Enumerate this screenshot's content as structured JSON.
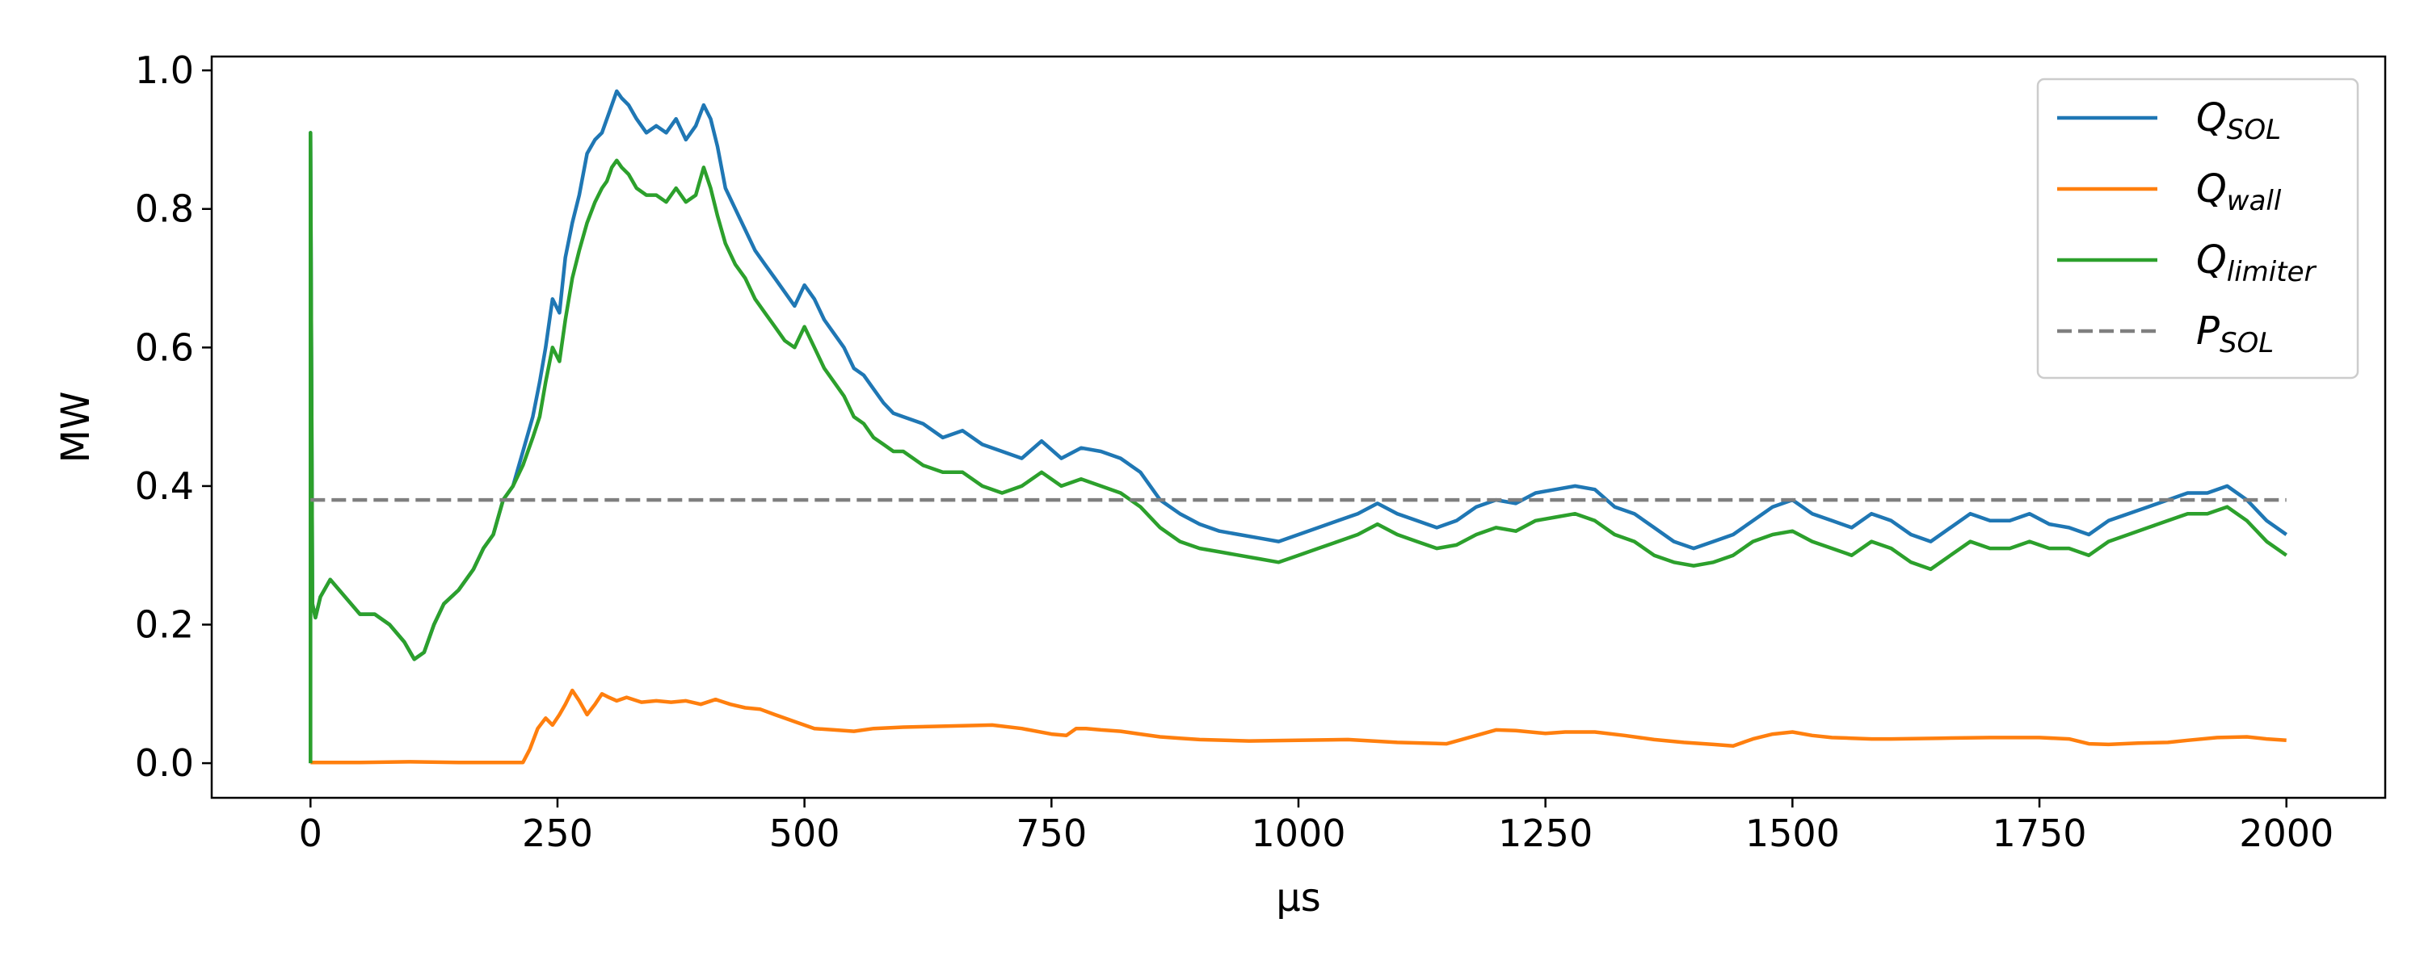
{
  "chart_data": {
    "type": "line",
    "title": "",
    "xlabel": "μs",
    "ylabel": "MW",
    "xlim": [
      -100,
      2100
    ],
    "ylim": [
      -0.05,
      1.02
    ],
    "xticks": [
      0,
      250,
      500,
      750,
      1000,
      1250,
      1500,
      1750,
      2000
    ],
    "yticks": [
      0.0,
      0.2,
      0.4,
      0.6,
      0.8,
      1.0
    ],
    "xtick_labels": [
      "0",
      "250",
      "500",
      "750",
      "1000",
      "1250",
      "1500",
      "1750",
      "2000"
    ],
    "ytick_labels": [
      "0.0",
      "0.2",
      "0.4",
      "0.6",
      "0.8",
      "1.0"
    ],
    "grid": false,
    "legend_position": "top-right",
    "series": [
      {
        "name_main": "Q",
        "name_sub": "SOL",
        "color": "#1f77b4",
        "style": "solid",
        "x": [
          0,
          0,
          2,
          5,
          10,
          20,
          35,
          50,
          65,
          80,
          95,
          105,
          115,
          125,
          135,
          150,
          165,
          175,
          185,
          195,
          205,
          215,
          225,
          232,
          238,
          245,
          252,
          258,
          265,
          272,
          280,
          288,
          295,
          300,
          305,
          310,
          315,
          322,
          330,
          340,
          350,
          360,
          370,
          380,
          390,
          398,
          405,
          412,
          420,
          430,
          440,
          450,
          460,
          470,
          480,
          490,
          500,
          510,
          520,
          530,
          540,
          550,
          560,
          570,
          580,
          590,
          600,
          620,
          640,
          660,
          680,
          700,
          720,
          740,
          760,
          780,
          800,
          820,
          840,
          860,
          880,
          900,
          920,
          940,
          960,
          980,
          1000,
          1020,
          1040,
          1060,
          1080,
          1100,
          1120,
          1140,
          1160,
          1180,
          1200,
          1220,
          1240,
          1260,
          1280,
          1300,
          1320,
          1340,
          1360,
          1380,
          1400,
          1420,
          1440,
          1460,
          1480,
          1500,
          1520,
          1540,
          1560,
          1580,
          1600,
          1620,
          1640,
          1660,
          1680,
          1700,
          1720,
          1740,
          1760,
          1780,
          1800,
          1820,
          1840,
          1860,
          1880,
          1900,
          1920,
          1940,
          1960,
          1980,
          2000
        ],
        "y": [
          0.0,
          0.91,
          0.23,
          0.21,
          0.24,
          0.265,
          0.24,
          0.215,
          0.215,
          0.2,
          0.175,
          0.15,
          0.16,
          0.2,
          0.23,
          0.25,
          0.28,
          0.31,
          0.33,
          0.38,
          0.4,
          0.45,
          0.5,
          0.55,
          0.6,
          0.67,
          0.65,
          0.73,
          0.78,
          0.82,
          0.88,
          0.9,
          0.91,
          0.93,
          0.95,
          0.97,
          0.96,
          0.95,
          0.93,
          0.91,
          0.92,
          0.91,
          0.93,
          0.9,
          0.92,
          0.95,
          0.93,
          0.89,
          0.83,
          0.8,
          0.77,
          0.74,
          0.72,
          0.7,
          0.68,
          0.66,
          0.69,
          0.67,
          0.64,
          0.62,
          0.6,
          0.57,
          0.56,
          0.54,
          0.52,
          0.505,
          0.5,
          0.49,
          0.47,
          0.48,
          0.46,
          0.45,
          0.44,
          0.465,
          0.44,
          0.455,
          0.45,
          0.44,
          0.42,
          0.38,
          0.36,
          0.345,
          0.335,
          0.33,
          0.325,
          0.32,
          0.33,
          0.34,
          0.35,
          0.36,
          0.375,
          0.36,
          0.35,
          0.34,
          0.35,
          0.37,
          0.38,
          0.375,
          0.39,
          0.395,
          0.4,
          0.395,
          0.37,
          0.36,
          0.34,
          0.32,
          0.31,
          0.32,
          0.33,
          0.35,
          0.37,
          0.38,
          0.36,
          0.35,
          0.34,
          0.36,
          0.35,
          0.33,
          0.32,
          0.34,
          0.36,
          0.35,
          0.35,
          0.36,
          0.345,
          0.34,
          0.33,
          0.35,
          0.36,
          0.37,
          0.38,
          0.39,
          0.39,
          0.4,
          0.38,
          0.35,
          0.33
        ]
      },
      {
        "name_main": "Q",
        "name_sub": "wall",
        "color": "#ff7f0e",
        "style": "solid",
        "x": [
          0,
          50,
          100,
          150,
          200,
          215,
          222,
          230,
          238,
          245,
          252,
          258,
          265,
          272,
          280,
          288,
          295,
          302,
          310,
          320,
          335,
          350,
          365,
          380,
          395,
          410,
          425,
          440,
          455,
          470,
          490,
          510,
          530,
          550,
          570,
          600,
          630,
          660,
          690,
          720,
          750,
          765,
          775,
          785,
          800,
          820,
          840,
          860,
          880,
          900,
          950,
          1000,
          1050,
          1100,
          1150,
          1180,
          1200,
          1220,
          1250,
          1270,
          1300,
          1330,
          1360,
          1390,
          1420,
          1440,
          1460,
          1480,
          1500,
          1520,
          1540,
          1560,
          1580,
          1600,
          1650,
          1700,
          1750,
          1780,
          1800,
          1820,
          1850,
          1880,
          1900,
          1930,
          1960,
          1980,
          2000
        ],
        "y": [
          0.001,
          0.001,
          0.002,
          0.001,
          0.001,
          0.001,
          0.02,
          0.05,
          0.065,
          0.055,
          0.07,
          0.085,
          0.105,
          0.09,
          0.07,
          0.085,
          0.1,
          0.095,
          0.09,
          0.095,
          0.088,
          0.09,
          0.088,
          0.09,
          0.085,
          0.092,
          0.085,
          0.08,
          0.078,
          0.07,
          0.06,
          0.05,
          0.048,
          0.046,
          0.05,
          0.052,
          0.053,
          0.054,
          0.055,
          0.05,
          0.042,
          0.04,
          0.05,
          0.05,
          0.048,
          0.046,
          0.042,
          0.038,
          0.036,
          0.034,
          0.032,
          0.033,
          0.034,
          0.03,
          0.028,
          0.04,
          0.048,
          0.047,
          0.043,
          0.045,
          0.045,
          0.04,
          0.034,
          0.03,
          0.027,
          0.025,
          0.035,
          0.042,
          0.045,
          0.04,
          0.037,
          0.036,
          0.035,
          0.035,
          0.036,
          0.037,
          0.037,
          0.035,
          0.028,
          0.027,
          0.029,
          0.03,
          0.033,
          0.037,
          0.038,
          0.035,
          0.033
        ]
      },
      {
        "name_main": "Q",
        "name_sub": "limiter",
        "color": "#2ca02c",
        "style": "solid",
        "x": [
          0,
          0,
          2,
          5,
          10,
          20,
          35,
          50,
          65,
          80,
          95,
          105,
          115,
          125,
          135,
          150,
          165,
          175,
          185,
          195,
          205,
          215,
          225,
          232,
          238,
          245,
          252,
          258,
          265,
          272,
          280,
          288,
          295,
          300,
          305,
          310,
          315,
          322,
          330,
          340,
          350,
          360,
          370,
          380,
          390,
          398,
          405,
          412,
          420,
          430,
          440,
          450,
          460,
          470,
          480,
          490,
          500,
          510,
          520,
          530,
          540,
          550,
          560,
          570,
          580,
          590,
          600,
          620,
          640,
          660,
          680,
          700,
          720,
          740,
          760,
          780,
          800,
          820,
          840,
          860,
          880,
          900,
          920,
          940,
          960,
          980,
          1000,
          1020,
          1040,
          1060,
          1080,
          1100,
          1120,
          1140,
          1160,
          1180,
          1200,
          1220,
          1240,
          1260,
          1280,
          1300,
          1320,
          1340,
          1360,
          1380,
          1400,
          1420,
          1440,
          1460,
          1480,
          1500,
          1520,
          1540,
          1560,
          1580,
          1600,
          1620,
          1640,
          1660,
          1680,
          1700,
          1720,
          1740,
          1760,
          1780,
          1800,
          1820,
          1840,
          1860,
          1880,
          1900,
          1920,
          1940,
          1960,
          1980,
          2000
        ],
        "y": [
          0.0,
          0.91,
          0.23,
          0.21,
          0.24,
          0.265,
          0.24,
          0.215,
          0.215,
          0.2,
          0.175,
          0.15,
          0.16,
          0.2,
          0.23,
          0.25,
          0.28,
          0.31,
          0.33,
          0.38,
          0.4,
          0.43,
          0.47,
          0.5,
          0.55,
          0.6,
          0.58,
          0.64,
          0.7,
          0.74,
          0.78,
          0.81,
          0.83,
          0.84,
          0.86,
          0.87,
          0.86,
          0.85,
          0.83,
          0.82,
          0.82,
          0.81,
          0.83,
          0.81,
          0.82,
          0.86,
          0.83,
          0.79,
          0.75,
          0.72,
          0.7,
          0.67,
          0.65,
          0.63,
          0.61,
          0.6,
          0.63,
          0.6,
          0.57,
          0.55,
          0.53,
          0.5,
          0.49,
          0.47,
          0.46,
          0.45,
          0.45,
          0.43,
          0.42,
          0.42,
          0.4,
          0.39,
          0.4,
          0.42,
          0.4,
          0.41,
          0.4,
          0.39,
          0.37,
          0.34,
          0.32,
          0.31,
          0.305,
          0.3,
          0.295,
          0.29,
          0.3,
          0.31,
          0.32,
          0.33,
          0.345,
          0.33,
          0.32,
          0.31,
          0.315,
          0.33,
          0.34,
          0.335,
          0.35,
          0.355,
          0.36,
          0.35,
          0.33,
          0.32,
          0.3,
          0.29,
          0.285,
          0.29,
          0.3,
          0.32,
          0.33,
          0.335,
          0.32,
          0.31,
          0.3,
          0.32,
          0.31,
          0.29,
          0.28,
          0.3,
          0.32,
          0.31,
          0.31,
          0.32,
          0.31,
          0.31,
          0.3,
          0.32,
          0.33,
          0.34,
          0.35,
          0.36,
          0.36,
          0.37,
          0.35,
          0.32,
          0.3
        ]
      },
      {
        "name_main": "P",
        "name_sub": "SOL",
        "color": "#7f7f7f",
        "style": "dashed",
        "x": [
          0,
          2000
        ],
        "y": [
          0.38,
          0.38
        ]
      }
    ]
  }
}
